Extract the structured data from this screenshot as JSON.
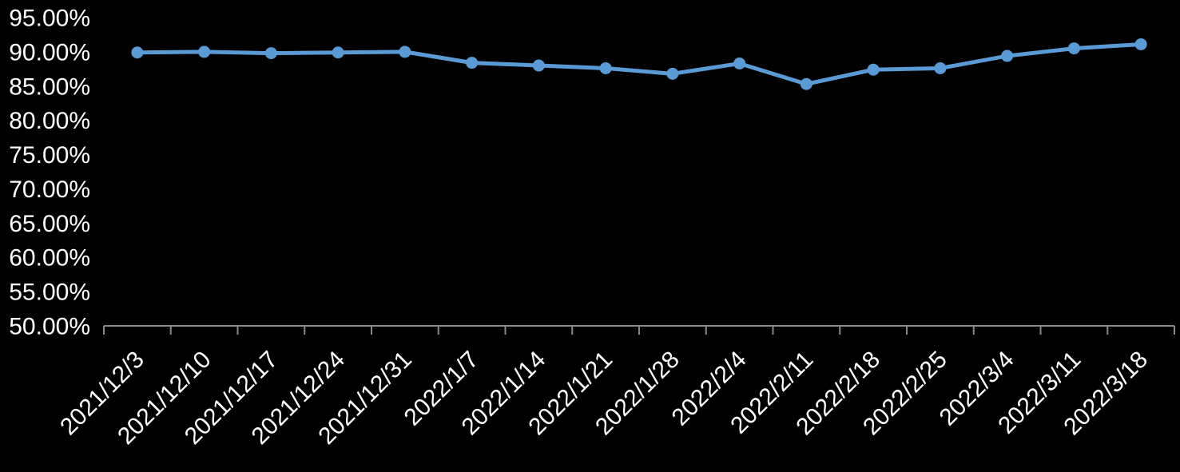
{
  "chart_data": {
    "type": "line",
    "title": "",
    "xlabel": "",
    "ylabel": "",
    "x": [
      "2021/12/3",
      "2021/12/10",
      "2021/12/17",
      "2021/12/24",
      "2021/12/31",
      "2022/1/7",
      "2022/1/14",
      "2022/1/21",
      "2022/1/28",
      "2022/2/4",
      "2022/2/11",
      "2022/2/18",
      "2022/2/25",
      "2022/3/4",
      "2022/3/11",
      "2022/3/18"
    ],
    "series": [
      {
        "name": "",
        "values": [
          89.9,
          90.0,
          89.8,
          89.9,
          90.0,
          88.4,
          88.0,
          87.6,
          86.8,
          88.3,
          85.3,
          87.4,
          87.6,
          89.4,
          90.5,
          91.1
        ]
      }
    ],
    "ylim": [
      50,
      95
    ],
    "ytick_step": 5,
    "ytick_labels": [
      "95.00%",
      "90.00%",
      "85.00%",
      "80.00%",
      "75.00%",
      "70.00%",
      "65.00%",
      "60.00%",
      "55.00%",
      "50.00%"
    ],
    "grid": false,
    "legend_position": "none",
    "x_label_rotation_deg": -45,
    "colors": {
      "background": "#000000",
      "line": "#5B9BD5",
      "marker": "#5B9BD5",
      "axis": "#898989",
      "tick": "#898989",
      "label_text": "#FFFFFF"
    }
  }
}
